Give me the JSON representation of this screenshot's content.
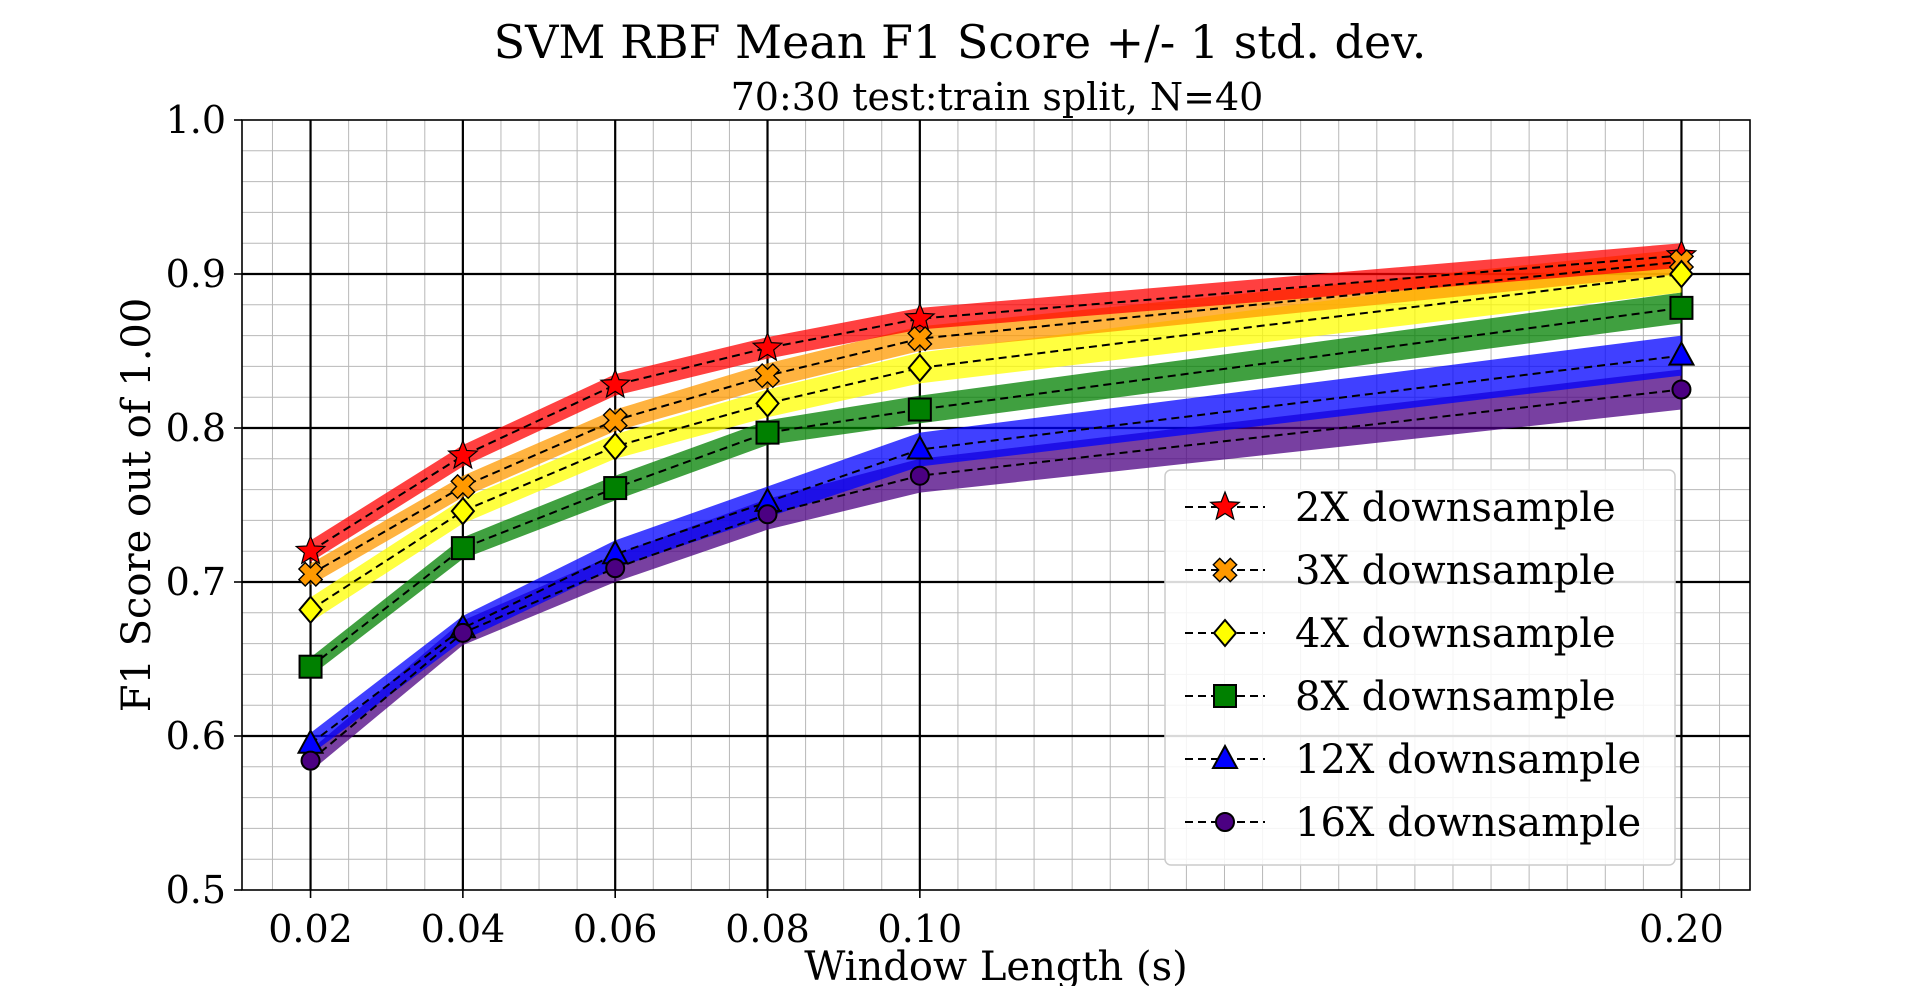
{
  "chart_data": {
    "type": "line",
    "title": "SVM RBF Mean F1 Score +/- 1 std. dev.",
    "subtitle": "70:30 test:train split, N=40",
    "xlabel": "Window Length (s)",
    "ylabel": "F1 Score out of 1.00",
    "x": [
      0.02,
      0.04,
      0.06,
      0.08,
      0.1,
      0.2
    ],
    "x_tick_labels": [
      "0.02",
      "0.04",
      "0.06",
      "0.08",
      "0.10",
      "0.20"
    ],
    "xlim": [
      0.011,
      0.209
    ],
    "ylim": [
      0.5,
      1.0
    ],
    "y_ticks": [
      0.5,
      0.6,
      0.7,
      0.8,
      0.9,
      1.0
    ],
    "y_tick_labels": [
      "0.5",
      "0.6",
      "0.7",
      "0.8",
      "0.9",
      "1.0"
    ],
    "grid": true,
    "minor_grid": true,
    "legend_position": "lower-right",
    "series": [
      {
        "name": "2X downsample",
        "marker": "star",
        "color": "#ff0000",
        "values": [
          0.72,
          0.782,
          0.828,
          0.852,
          0.871,
          0.912
        ],
        "std": [
          0.007,
          0.007,
          0.007,
          0.007,
          0.007,
          0.008
        ]
      },
      {
        "name": "3X downsample",
        "marker": "x-filled",
        "color": "#ff9900",
        "values": [
          0.705,
          0.762,
          0.805,
          0.834,
          0.858,
          0.908
        ],
        "std": [
          0.007,
          0.007,
          0.007,
          0.008,
          0.008,
          0.008
        ]
      },
      {
        "name": "4X downsample",
        "marker": "diamond",
        "color": "#ffff00",
        "values": [
          0.682,
          0.746,
          0.788,
          0.816,
          0.839,
          0.9
        ],
        "std": [
          0.008,
          0.008,
          0.008,
          0.009,
          0.01,
          0.012
        ]
      },
      {
        "name": "8X downsample",
        "marker": "square",
        "color": "#008000",
        "values": [
          0.645,
          0.722,
          0.761,
          0.797,
          0.812,
          0.878
        ],
        "std": [
          0.006,
          0.007,
          0.008,
          0.008,
          0.009,
          0.01
        ]
      },
      {
        "name": "12X downsample",
        "marker": "triangle",
        "color": "#0000ff",
        "values": [
          0.595,
          0.67,
          0.718,
          0.752,
          0.786,
          0.847
        ],
        "std": [
          0.007,
          0.008,
          0.009,
          0.01,
          0.011,
          0.013
        ]
      },
      {
        "name": "16X downsample",
        "marker": "circle",
        "color": "#4b0082",
        "values": [
          0.584,
          0.667,
          0.709,
          0.744,
          0.769,
          0.825
        ],
        "std": [
          0.007,
          0.008,
          0.009,
          0.01,
          0.011,
          0.013
        ]
      }
    ]
  }
}
